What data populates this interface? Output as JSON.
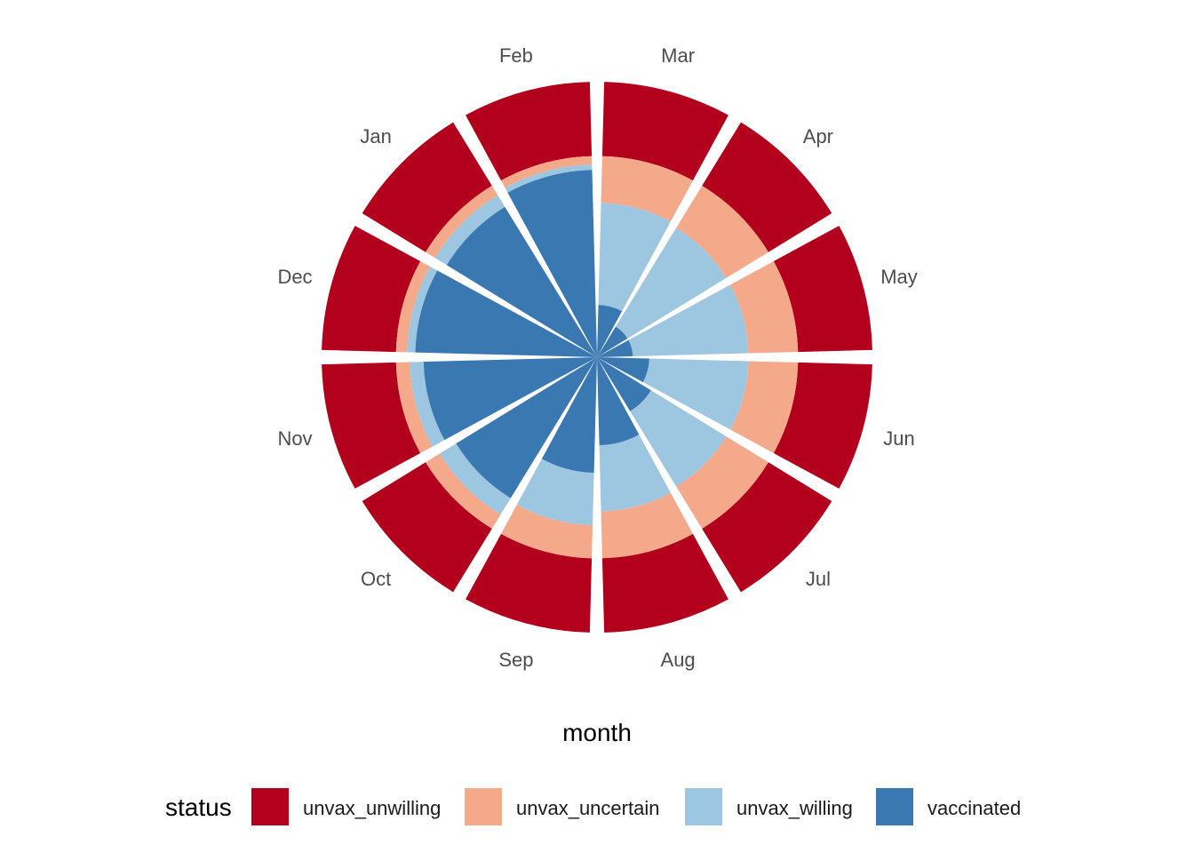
{
  "chart_data": {
    "type": "bar",
    "coordinate_system": "polar",
    "stacking": "fill",
    "categories": [
      "Jan",
      "Feb",
      "Mar",
      "Apr",
      "May",
      "Jun",
      "Jul",
      "Aug",
      "Sep",
      "Oct",
      "Nov",
      "Dec"
    ],
    "series": [
      {
        "name": "unvax_unwilling",
        "color": "#B2001D",
        "values": [
          0.27,
          0.27,
          0.27,
          0.27,
          0.27,
          0.27,
          0.27,
          0.27,
          0.27,
          0.27,
          0.27,
          0.27
        ]
      },
      {
        "name": "unvax_uncertain",
        "color": "#F4A98B",
        "values": [
          0.04,
          0.03,
          0.17,
          0.18,
          0.18,
          0.18,
          0.18,
          0.17,
          0.12,
          0.06,
          0.05,
          0.04
        ]
      },
      {
        "name": "unvax_willing",
        "color": "#9DC6E0",
        "values": [
          0.05,
          0.02,
          0.37,
          0.42,
          0.42,
          0.36,
          0.32,
          0.24,
          0.19,
          0.07,
          0.05,
          0.03
        ]
      },
      {
        "name": "vaccinated",
        "color": "#3A78B2",
        "values": [
          0.64,
          0.68,
          0.19,
          0.13,
          0.13,
          0.19,
          0.23,
          0.32,
          0.42,
          0.6,
          0.63,
          0.66
        ]
      }
    ],
    "xlabel": "month",
    "ylabel": "",
    "ylim": [
      0,
      1
    ],
    "grid": false,
    "legend": {
      "title": "status",
      "position": "bottom"
    }
  }
}
